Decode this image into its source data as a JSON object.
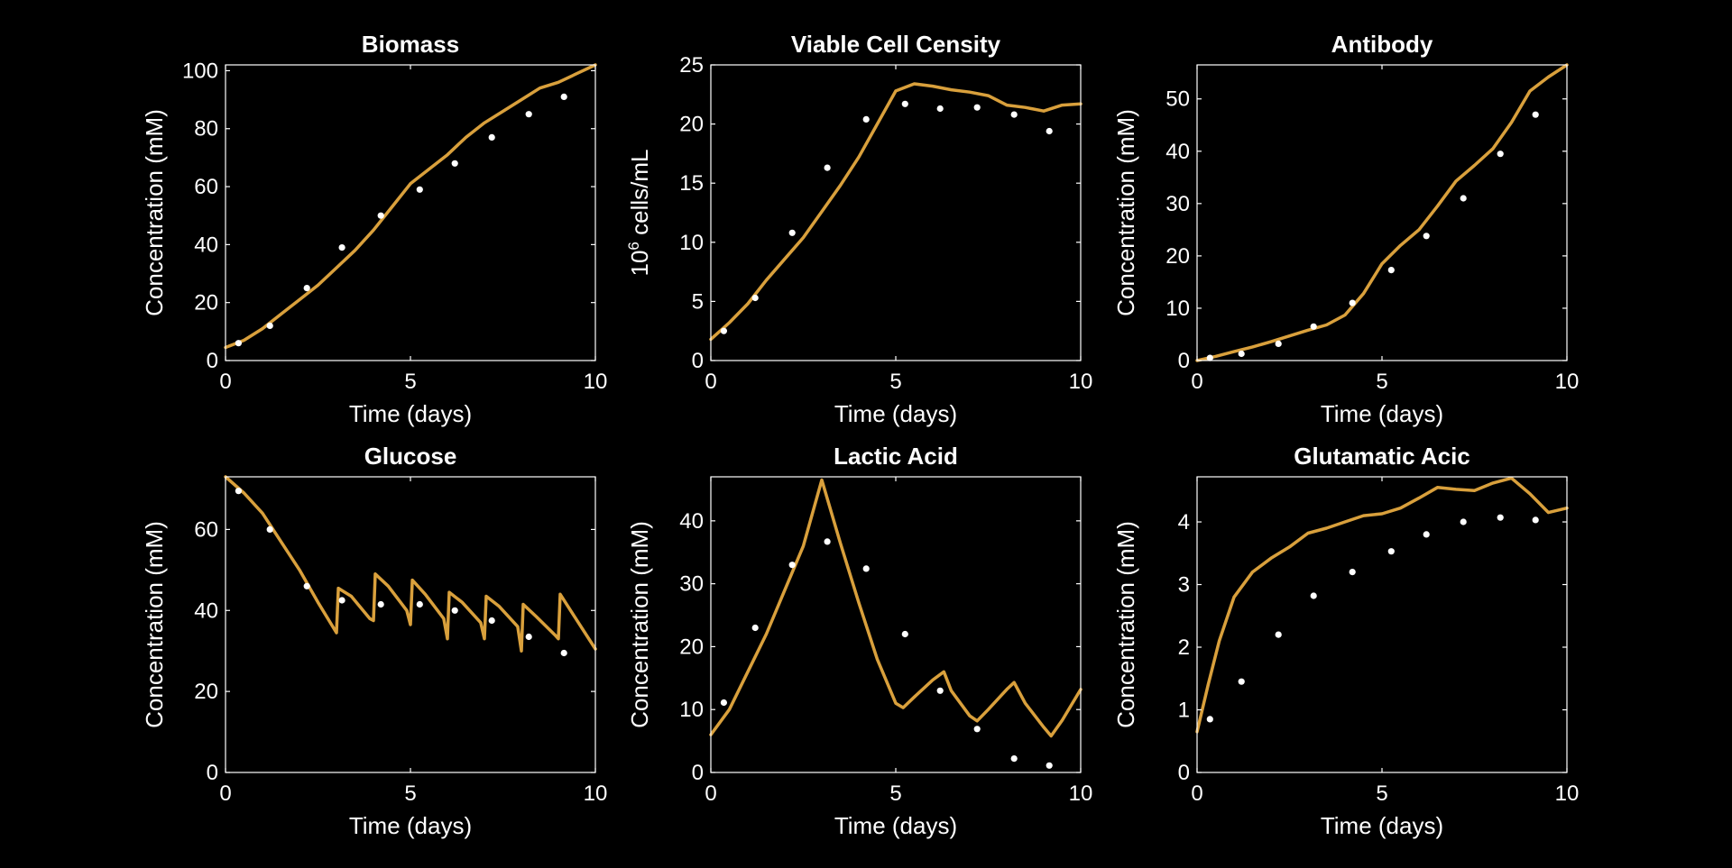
{
  "colors": {
    "background": "#000000",
    "axes": "#ffffff",
    "model_line": "#d9a03c",
    "measured_points": "#ffffff"
  },
  "chart_data": [
    {
      "type": "line",
      "title": "Biomass",
      "xlabel": "Time (days)",
      "ylabel": "Concentration (mM)",
      "xlim": [
        0,
        10
      ],
      "ylim": [
        0,
        102
      ],
      "xticks": [
        0,
        5,
        10
      ],
      "yticks": [
        0,
        20,
        40,
        60,
        80,
        100
      ],
      "series": [
        {
          "kind": "line",
          "x": [
            0,
            0.5,
            1,
            1.5,
            2,
            2.5,
            3,
            3.5,
            4,
            4.5,
            5,
            5.5,
            6,
            6.5,
            7,
            7.5,
            8,
            8.5,
            9,
            9.5,
            10
          ],
          "y": [
            4.5,
            7,
            11,
            16,
            21,
            26,
            32,
            38,
            45,
            53,
            61,
            66,
            71,
            77,
            82,
            86,
            90,
            94,
            96,
            99,
            102
          ]
        },
        {
          "kind": "scatter",
          "x": [
            0.35,
            1.2,
            2.2,
            3.15,
            4.2,
            5.25,
            6.2,
            7.2,
            8.2,
            9.15
          ],
          "y": [
            6,
            12,
            25,
            39,
            50,
            59,
            68,
            77,
            85,
            91
          ]
        }
      ]
    },
    {
      "type": "line",
      "title": "Viable Cell Censity",
      "xlabel": "Time (days)",
      "ylabel": "cells/mL",
      "ylabel_prefix": "10",
      "ylabel_exponent": "6",
      "xlim": [
        0,
        10
      ],
      "ylim": [
        0,
        25
      ],
      "xticks": [
        0,
        5,
        10
      ],
      "yticks": [
        0,
        5,
        10,
        15,
        20,
        25
      ],
      "series": [
        {
          "kind": "line",
          "x": [
            0,
            0.5,
            1,
            1.5,
            2,
            2.5,
            3,
            3.5,
            4,
            4.5,
            5,
            5.5,
            6,
            6.5,
            7,
            7.5,
            8,
            8.5,
            9,
            9.5,
            10
          ],
          "y": [
            1.8,
            3.2,
            4.8,
            6.8,
            8.6,
            10.4,
            12.6,
            14.8,
            17.2,
            20,
            22.8,
            23.4,
            23.2,
            22.9,
            22.7,
            22.4,
            21.6,
            21.4,
            21.1,
            21.6,
            21.7
          ]
        },
        {
          "kind": "scatter",
          "x": [
            0.35,
            1.2,
            2.2,
            3.15,
            4.2,
            5.25,
            6.2,
            7.2,
            8.2,
            9.15
          ],
          "y": [
            2.5,
            5.3,
            10.8,
            16.3,
            20.4,
            21.7,
            21.3,
            21.4,
            20.8,
            19.4
          ]
        }
      ]
    },
    {
      "type": "line",
      "title": "Antibody",
      "xlabel": "Time (days)",
      "ylabel": "Concentration (mM)",
      "xlim": [
        0,
        10
      ],
      "ylim": [
        0,
        56.5
      ],
      "xticks": [
        0,
        5,
        10
      ],
      "yticks": [
        0,
        10,
        20,
        30,
        40,
        50
      ],
      "series": [
        {
          "kind": "line",
          "x": [
            0,
            0.5,
            1,
            1.5,
            2,
            2.5,
            3,
            3.5,
            4,
            4.5,
            5,
            5.5,
            6,
            6.5,
            7,
            7.5,
            8,
            8.5,
            9,
            9.5,
            10
          ],
          "y": [
            0,
            0.8,
            1.7,
            2.6,
            3.6,
            4.7,
            5.8,
            6.8,
            8.7,
            12.8,
            18.5,
            22,
            25,
            29.5,
            34.3,
            37.3,
            40.5,
            45.5,
            51.5,
            54.2,
            56.5
          ]
        },
        {
          "kind": "scatter",
          "x": [
            0.35,
            1.2,
            2.2,
            3.15,
            4.2,
            5.25,
            6.2,
            7.2,
            8.2,
            9.15
          ],
          "y": [
            0.5,
            1.3,
            3.2,
            6.5,
            11,
            17.3,
            23.8,
            31,
            39.5,
            47
          ]
        }
      ]
    },
    {
      "type": "line",
      "title": "Glucose",
      "xlabel": "Time (days)",
      "ylabel": "Concentration (mM)",
      "xlim": [
        0,
        10
      ],
      "ylim": [
        0,
        73
      ],
      "xticks": [
        0,
        5,
        10
      ],
      "yticks": [
        0,
        20,
        40,
        60
      ],
      "series": [
        {
          "kind": "line",
          "x": [
            0,
            0.5,
            1,
            1.5,
            2,
            2.5,
            3,
            3.05,
            3.4,
            3.9,
            4,
            4.05,
            4.4,
            4.9,
            5,
            5.05,
            5.4,
            5.9,
            6,
            6.05,
            6.4,
            6.9,
            7,
            7.05,
            7.4,
            7.9,
            8,
            8.05,
            8.4,
            8.9,
            9,
            9.05,
            9.4,
            10
          ],
          "y": [
            73,
            69,
            64,
            57,
            50,
            42,
            34.5,
            45.5,
            43.5,
            38,
            37.5,
            49,
            46,
            40,
            36.5,
            47.5,
            44,
            38,
            33,
            44.5,
            42,
            37,
            33,
            43.5,
            41,
            36,
            30,
            41.5,
            38.5,
            34,
            33,
            44,
            39,
            30.5
          ]
        },
        {
          "kind": "scatter",
          "x": [
            0.35,
            1.2,
            2.2,
            3.15,
            4.2,
            5.25,
            6.2,
            7.2,
            8.2,
            9.15
          ],
          "y": [
            69.5,
            60,
            46,
            42.5,
            41.5,
            41.5,
            40,
            37.5,
            33.5,
            29.5
          ]
        }
      ]
    },
    {
      "type": "line",
      "title": "Lactic Acid",
      "xlabel": "Time (days)",
      "ylabel": "Concentration (mM)",
      "xlim": [
        0,
        10
      ],
      "ylim": [
        0,
        47
      ],
      "xticks": [
        0,
        5,
        10
      ],
      "yticks": [
        0,
        10,
        20,
        30,
        40
      ],
      "series": [
        {
          "kind": "line",
          "x": [
            0,
            0.5,
            1,
            1.5,
            2,
            2.5,
            3,
            3.5,
            4,
            4.5,
            5,
            5.2,
            5.5,
            6,
            6.3,
            6.5,
            7,
            7.2,
            7.5,
            8,
            8.2,
            8.5,
            9,
            9.2,
            9.5,
            10
          ],
          "y": [
            6,
            10,
            16,
            22,
            29,
            36,
            46.5,
            36.5,
            27,
            18,
            11,
            10.3,
            12,
            14.7,
            16,
            13,
            9,
            8.2,
            10,
            13.2,
            14.3,
            11,
            7.2,
            5.8,
            8.3,
            13.2
          ]
        },
        {
          "kind": "scatter",
          "x": [
            0.35,
            1.2,
            2.2,
            3.15,
            4.2,
            5.25,
            6.2,
            7.2,
            8.2,
            9.15
          ],
          "y": [
            11.1,
            23,
            33,
            36.7,
            32.4,
            22,
            13,
            6.9,
            2.2,
            1.1
          ]
        }
      ]
    },
    {
      "type": "line",
      "title": "Glutamatic Acic",
      "xlabel": "Time (days)",
      "ylabel": "Concentration (mM)",
      "xlim": [
        0,
        10
      ],
      "ylim": [
        0,
        4.72
      ],
      "xticks": [
        0,
        5,
        10
      ],
      "yticks": [
        0,
        1,
        2,
        3,
        4
      ],
      "series": [
        {
          "kind": "line",
          "x": [
            0,
            0.3,
            0.6,
            1,
            1.5,
            2,
            2.5,
            3,
            3.5,
            4,
            4.5,
            5,
            5.5,
            6,
            6.5,
            7,
            7.5,
            8,
            8.5,
            9,
            9.5,
            10
          ],
          "y": [
            0.65,
            1.4,
            2.1,
            2.8,
            3.2,
            3.42,
            3.6,
            3.82,
            3.9,
            4,
            4.1,
            4.13,
            4.22,
            4.38,
            4.55,
            4.52,
            4.5,
            4.62,
            4.7,
            4.45,
            4.15,
            4.22
          ]
        },
        {
          "kind": "scatter",
          "x": [
            0.35,
            1.2,
            2.2,
            3.15,
            4.2,
            5.25,
            6.2,
            7.2,
            8.2,
            9.15
          ],
          "y": [
            0.85,
            1.45,
            2.2,
            2.82,
            3.2,
            3.53,
            3.8,
            4,
            4.07,
            4.03
          ]
        }
      ]
    }
  ]
}
